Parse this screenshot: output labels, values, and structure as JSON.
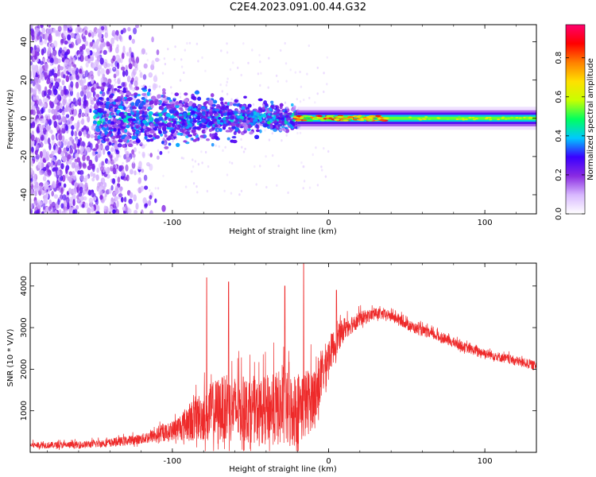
{
  "figure": {
    "title": "C2E4.2023.091.00.44.G32"
  },
  "chart_data": [
    {
      "type": "heatmap",
      "xlabel": "Height of straight line (km)",
      "ylabel": "Frequency (Hz)",
      "xlim": [
        -191,
        133
      ],
      "ylim": [
        -50,
        49
      ],
      "x_ticks": [
        -100,
        0,
        100
      ],
      "y_ticks": [
        -40,
        -20,
        0,
        20,
        40
      ],
      "colorbar": {
        "label": "Normalized spectral amplitude",
        "range": [
          0,
          0.97
        ],
        "ticks": [
          "0.0",
          "0.2",
          "0.4",
          "0.6",
          "0.8"
        ],
        "tick_values": [
          0.0,
          0.2,
          0.4,
          0.6,
          0.8
        ],
        "stops": [
          "#ffffff",
          "#d8b8ff",
          "#8a2be2",
          "#3a00ff",
          "#00c8ff",
          "#00ff60",
          "#c8ff00",
          "#ffe000",
          "#ff8000",
          "#ff0000",
          "#ff006e"
        ]
      },
      "description_regions": [
        {
          "x_from": -191,
          "x_to": -138,
          "character": "broadband scattered noise",
          "amplitude": 0.1
        },
        {
          "x_from": -138,
          "x_to": -20,
          "character": "narrowing noisy band",
          "amplitude": 0.25
        },
        {
          "x_from": -20,
          "x_to": 133,
          "character": "narrow stable carrier",
          "amplitude": 0.45
        }
      ]
    },
    {
      "type": "line",
      "xlabel": "Height of straight line (km)",
      "ylabel": "SNR (10 * V/V)",
      "xlim": [
        -191,
        133
      ],
      "ylim": [
        0,
        4550
      ],
      "x_ticks": [
        -100,
        0,
        100
      ],
      "y_ticks": [
        1000,
        2000,
        3000,
        4000
      ],
      "color": "#ee2a2a",
      "profile": [
        {
          "x": -191,
          "base": 150,
          "spread": 150
        },
        {
          "x": -160,
          "base": 150,
          "spread": 170
        },
        {
          "x": -140,
          "base": 200,
          "spread": 200
        },
        {
          "x": -120,
          "base": 280,
          "spread": 250
        },
        {
          "x": -100,
          "base": 450,
          "spread": 450
        },
        {
          "x": -85,
          "base": 650,
          "spread": 1100
        },
        {
          "x": -70,
          "base": 800,
          "spread": 1600
        },
        {
          "x": -55,
          "base": 800,
          "spread": 1600
        },
        {
          "x": -45,
          "base": 750,
          "spread": 1500
        },
        {
          "x": -35,
          "base": 800,
          "spread": 1800
        },
        {
          "x": -25,
          "base": 700,
          "spread": 1900
        },
        {
          "x": -15,
          "base": 900,
          "spread": 1700
        },
        {
          "x": -8,
          "base": 1200,
          "spread": 1400
        },
        {
          "x": 0,
          "base": 2200,
          "spread": 900
        },
        {
          "x": 10,
          "base": 2900,
          "spread": 550
        },
        {
          "x": 20,
          "base": 3150,
          "spread": 380
        },
        {
          "x": 30,
          "base": 3300,
          "spread": 260
        },
        {
          "x": 40,
          "base": 3250,
          "spread": 250
        },
        {
          "x": 55,
          "base": 2950,
          "spread": 260
        },
        {
          "x": 70,
          "base": 2750,
          "spread": 240
        },
        {
          "x": 90,
          "base": 2450,
          "spread": 230
        },
        {
          "x": 110,
          "base": 2250,
          "spread": 230
        },
        {
          "x": 133,
          "base": 2050,
          "spread": 220
        }
      ],
      "peaks": [
        {
          "x": -78,
          "y": 4200
        },
        {
          "x": -64,
          "y": 4100
        },
        {
          "x": -28,
          "y": 4000
        },
        {
          "x": -16,
          "y": 4550
        },
        {
          "x": 5,
          "y": 3900
        }
      ]
    }
  ]
}
